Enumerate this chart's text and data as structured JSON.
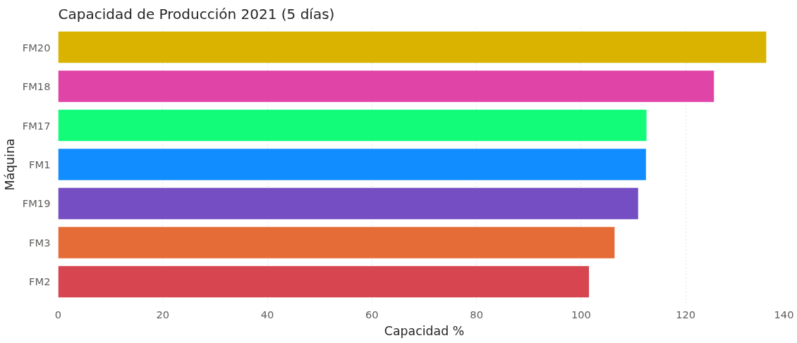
{
  "chart_data": {
    "type": "bar",
    "orientation": "horizontal",
    "title": "Capacidad de Producción 2021 (5 días)",
    "xlabel": "Capacidad %",
    "ylabel": "Máquina",
    "categories": [
      "FM20",
      "FM18",
      "FM17",
      "FM1",
      "FM19",
      "FM3",
      "FM2"
    ],
    "values": [
      135.4,
      125.4,
      112.5,
      112.4,
      110.9,
      106.4,
      101.5
    ],
    "colors": [
      "#d9b300",
      "#e044a7",
      "#12fc7a",
      "#118dff",
      "#744ec2",
      "#e66c37",
      "#d64550"
    ],
    "xlim": [
      0,
      140
    ],
    "xticks": [
      0,
      20,
      40,
      60,
      80,
      100,
      120,
      140
    ],
    "grid": "x"
  }
}
